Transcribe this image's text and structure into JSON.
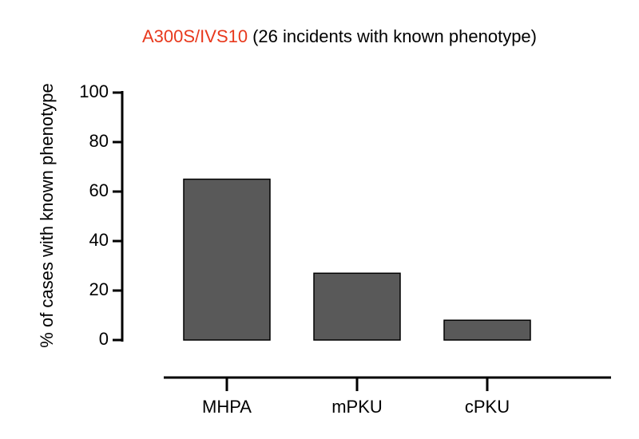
{
  "chart_data": {
    "type": "bar",
    "title_highlight": "A300S/IVS10",
    "title_highlight_color": "#e8391d",
    "title": "(26 incidents with known phenotype)",
    "y_label": "% of cases with known phenotype",
    "categories": [
      "MHPA",
      "mPKU",
      "cPKU"
    ],
    "values": [
      65,
      27,
      8
    ],
    "color": "#595959",
    "ylim": [
      0,
      100
    ],
    "yticks": [
      0,
      20,
      40,
      60,
      80,
      100
    ],
    "grid": false
  }
}
